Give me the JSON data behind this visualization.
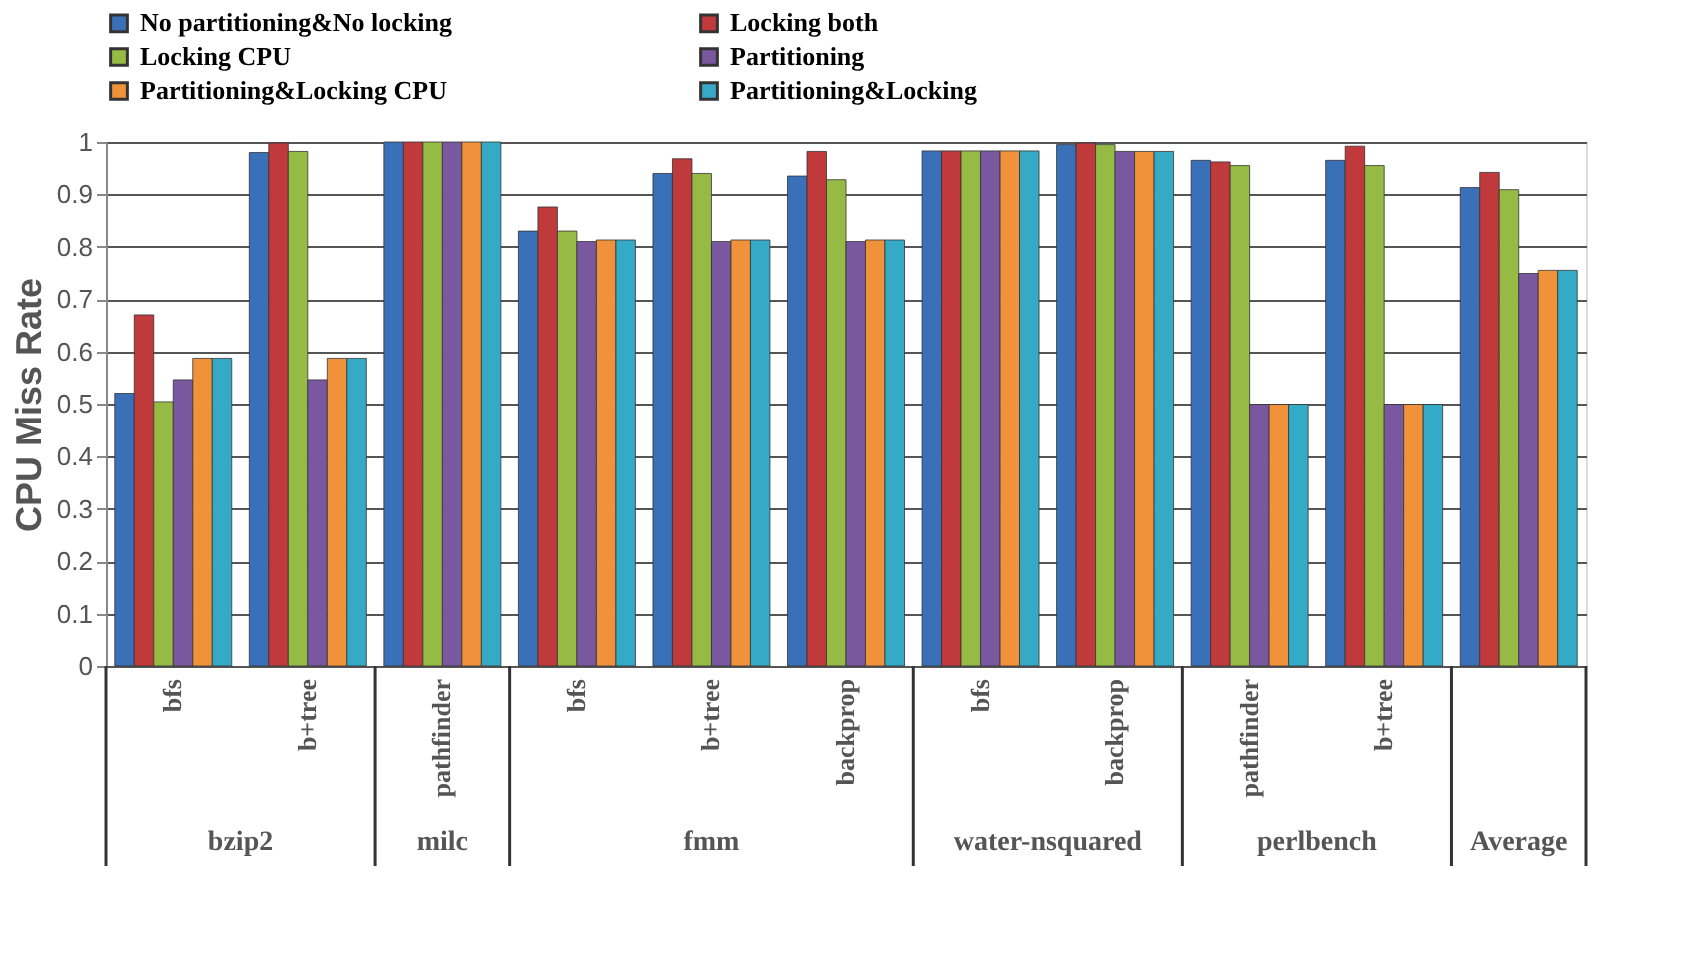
{
  "chart_data": {
    "type": "bar",
    "ylabel": "CPU Miss Rate",
    "categories": [
      "bfs",
      "b+tree",
      "pathfinder",
      "bfs",
      "b+tree",
      "backprop",
      "bfs",
      "backprop",
      "pathfinder",
      "b+tree",
      null
    ],
    "annotations": [
      "bzip2",
      "milc",
      "fmm",
      "water-nsquared",
      "perlbench",
      "Average"
    ],
    "series": [
      {
        "name": "No partitioning&No locking",
        "color": "#3a70b8",
        "values": [
          0.52,
          0.98,
          1.0,
          0.83,
          0.94,
          0.935,
          0.983,
          0.995,
          0.965,
          0.965,
          0.913
        ]
      },
      {
        "name": "Locking both",
        "color": "#c0393b",
        "values": [
          0.67,
          0.998,
          1.0,
          0.876,
          0.968,
          0.982,
          0.983,
          0.998,
          0.962,
          0.992,
          0.942
        ]
      },
      {
        "name": "Locking CPU",
        "color": "#96bb45",
        "values": [
          0.504,
          0.982,
          1.0,
          0.83,
          0.94,
          0.928,
          0.983,
          0.995,
          0.955,
          0.955,
          0.909
        ]
      },
      {
        "name": "Partitioning",
        "color": "#7a58a0",
        "values": [
          0.546,
          0.546,
          1.0,
          0.81,
          0.81,
          0.81,
          0.983,
          0.982,
          0.499,
          0.499,
          0.749
        ]
      },
      {
        "name": "Partitioning&Locking CPU",
        "color": "#f0923a",
        "values": [
          0.587,
          0.587,
          1.0,
          0.813,
          0.813,
          0.813,
          0.983,
          0.982,
          0.499,
          0.499,
          0.755
        ]
      },
      {
        "name": "Partitioning&Locking",
        "color": "#35aac7",
        "values": [
          0.587,
          0.587,
          1.0,
          0.813,
          0.813,
          0.813,
          0.983,
          0.982,
          0.499,
          0.499,
          0.755
        ]
      }
    ],
    "ylim": [
      0,
      1
    ],
    "yticks": [
      0,
      0.1,
      0.2,
      0.3,
      0.4,
      0.5,
      0.6,
      0.7,
      0.8,
      0.9,
      1
    ],
    "grid": "y",
    "legend": "top"
  }
}
